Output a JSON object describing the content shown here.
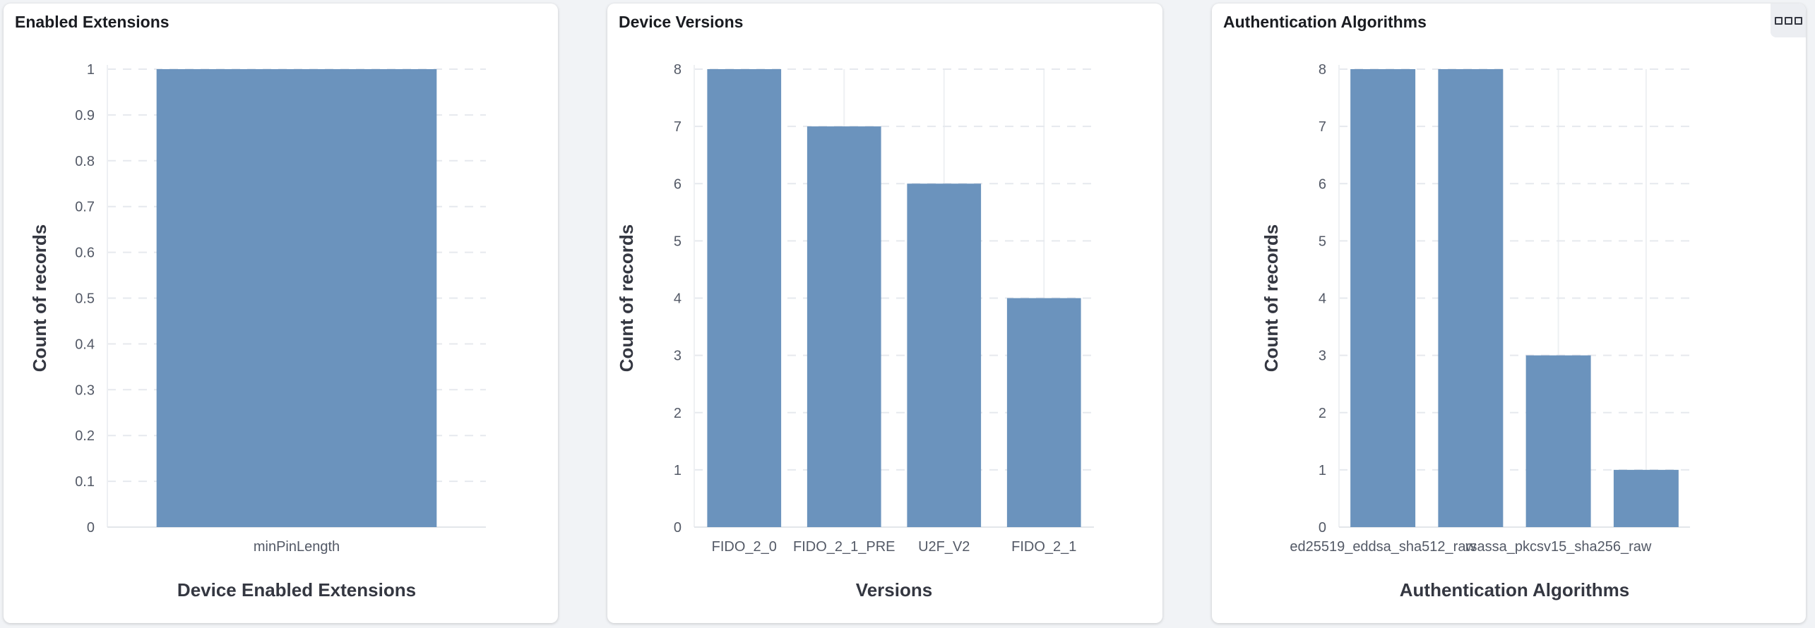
{
  "chart_data": [
    {
      "type": "bar",
      "title": "Enabled Extensions",
      "xlabel": "Device Enabled Extensions",
      "ylabel": "Count of records",
      "categories": [
        "minPinLength"
      ],
      "x_tick_labels": [
        "minPinLength"
      ],
      "values": [
        1
      ],
      "ylim": [
        0,
        1
      ],
      "y_ticks": [
        "0",
        "0.1",
        "0.2",
        "0.3",
        "0.4",
        "0.5",
        "0.6",
        "0.7",
        "0.8",
        "0.9",
        "1"
      ],
      "grid": true,
      "color": "#6b93bd"
    },
    {
      "type": "bar",
      "title": "Device Versions",
      "xlabel": "Versions",
      "ylabel": "Count of records",
      "categories": [
        "FIDO_2_0",
        "FIDO_2_1_PRE",
        "U2F_V2",
        "FIDO_2_1"
      ],
      "x_tick_labels": [
        "FIDO_2_0",
        "FIDO_2_1_PRE",
        "U2F_V2",
        "FIDO_2_1"
      ],
      "values": [
        8,
        7,
        6,
        4
      ],
      "ylim": [
        0,
        8
      ],
      "y_ticks": [
        "0",
        "1",
        "2",
        "3",
        "4",
        "5",
        "6",
        "7",
        "8"
      ],
      "grid": true,
      "color": "#6b93bd"
    },
    {
      "type": "bar",
      "title": "Authentication Algorithms",
      "xlabel": "Authentication Algorithms",
      "ylabel": "Count of records",
      "x_tick_labels": [
        "ed25519_eddsa_sha512_raw",
        "",
        "rsassa_pkcsv15_sha256_raw",
        ""
      ],
      "values": [
        8,
        8,
        3,
        1
      ],
      "ylim": [
        0,
        8
      ],
      "y_ticks": [
        "0",
        "1",
        "2",
        "3",
        "4",
        "5",
        "6",
        "7",
        "8"
      ],
      "grid": true,
      "color": "#6b93bd"
    }
  ],
  "panel_menu_icon": "more-options-icon"
}
